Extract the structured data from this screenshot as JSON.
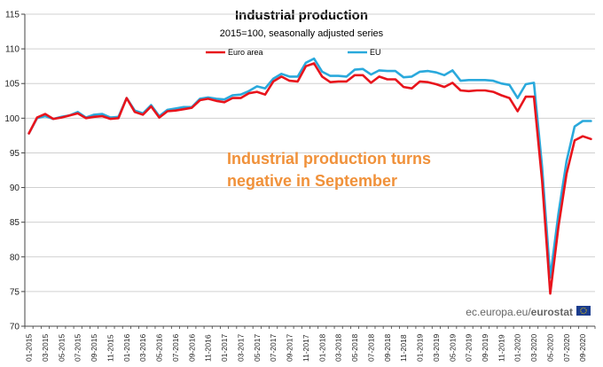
{
  "chart_data": {
    "type": "line",
    "title": "Industrial production",
    "subtitle": "2015=100, seasonally adjusted series",
    "xlabel": "",
    "ylabel": "",
    "ylim": [
      70,
      115
    ],
    "yticks": [
      70,
      75,
      80,
      85,
      90,
      95,
      100,
      105,
      110,
      115
    ],
    "grid": "horizontal",
    "legend_position": "top-center",
    "tick_labels": [
      "01-2015",
      "03-2015",
      "05-2015",
      "07-2015",
      "09-2015",
      "11-2015",
      "01-2016",
      "03-2016",
      "05-2016",
      "07-2016",
      "09-2016",
      "11-2016",
      "01-2017",
      "03-2017",
      "05-2017",
      "07-2017",
      "09-2017",
      "11-2017",
      "01-2018",
      "03-2018",
      "05-2018",
      "07-2018",
      "09-2018",
      "11-2018",
      "01-2019",
      "03-2019",
      "05-2019",
      "07-2019",
      "09-2019",
      "11-2019",
      "01-2020",
      "03-2020",
      "05-2020",
      "07-2020",
      "09-2020"
    ],
    "series": [
      {
        "name": "Euro area",
        "color": "#e8141c",
        "values": [
          97.8,
          100.1,
          100.6,
          99.9,
          100.1,
          100.4,
          100.7,
          100.0,
          100.2,
          100.3,
          99.9,
          100.0,
          102.9,
          100.9,
          100.5,
          101.7,
          100.1,
          101.0,
          101.1,
          101.3,
          101.5,
          102.6,
          102.8,
          102.5,
          102.3,
          102.9,
          102.9,
          103.6,
          103.8,
          103.4,
          105.3,
          106.0,
          105.4,
          105.3,
          107.5,
          107.9,
          106.0,
          105.2,
          105.3,
          105.3,
          106.2,
          106.2,
          105.1,
          106.0,
          105.6,
          105.6,
          104.5,
          104.3,
          105.3,
          105.2,
          104.9,
          104.5,
          105.1,
          104.0,
          103.9,
          104.0,
          104.0,
          103.8,
          103.3,
          102.9,
          101.0,
          103.1,
          103.1,
          91.0,
          74.7,
          84.3,
          92.0,
          96.8,
          97.4,
          97.0
        ]
      },
      {
        "name": "EU",
        "color": "#2aa9dc",
        "values": [
          97.8,
          100.0,
          100.3,
          99.9,
          100.2,
          100.4,
          100.9,
          100.1,
          100.5,
          100.6,
          100.1,
          100.2,
          102.9,
          101.1,
          100.7,
          101.9,
          100.3,
          101.2,
          101.4,
          101.6,
          101.6,
          102.8,
          103.0,
          102.8,
          102.7,
          103.3,
          103.4,
          103.9,
          104.6,
          104.3,
          105.7,
          106.4,
          106.0,
          106.0,
          108.0,
          108.6,
          106.7,
          106.1,
          106.1,
          106.0,
          107.0,
          107.1,
          106.3,
          106.9,
          106.8,
          106.8,
          105.9,
          106.0,
          106.7,
          106.8,
          106.6,
          106.2,
          106.9,
          105.4,
          105.5,
          105.5,
          105.5,
          105.4,
          105.0,
          104.8,
          102.9,
          104.9,
          105.1,
          93.0,
          77.0,
          86.2,
          93.8,
          98.8,
          99.6,
          99.6
        ]
      }
    ]
  },
  "annotation": {
    "line1": "Industrial production turns",
    "line2": "negative in September"
  },
  "credit": {
    "site": "ec.europa.eu/",
    "brand": "eurostat"
  }
}
